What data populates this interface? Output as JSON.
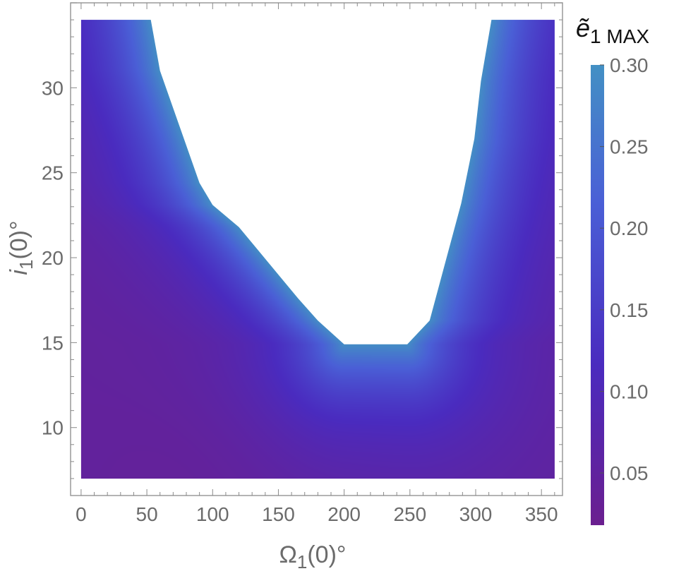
{
  "chart_data": {
    "type": "heatmap",
    "title": "",
    "xlabel": "Ω",
    "xlabel_sub": "1",
    "xlabel_suffix": "(0)°",
    "ylabel": "i",
    "ylabel_sub": "1",
    "ylabel_suffix": "(0)°",
    "colorbar_label": "ẽ",
    "colorbar_label_sub": "1 MAX",
    "xlim": [
      -8,
      366
    ],
    "ylim": [
      6,
      35
    ],
    "data_x_range": [
      0,
      360
    ],
    "data_y_range": [
      7,
      34
    ],
    "x_ticks": [
      0,
      50,
      100,
      150,
      200,
      250,
      300,
      350
    ],
    "y_ticks": [
      10,
      15,
      20,
      25,
      30
    ],
    "colorbar_range": [
      0.018,
      0.3
    ],
    "colorbar_ticks": [
      0.05,
      0.1,
      0.15,
      0.2,
      0.25,
      0.3
    ],
    "colorbar_tick_labels": [
      "0.05",
      "0.10",
      "0.15",
      "0.20",
      "0.25",
      "0.30"
    ],
    "colormap": [
      "#6b1f8f",
      "#4a2bbf",
      "#4a5fd6",
      "#4390c4"
    ],
    "frame_color": "#9a9a9a",
    "tick_color": "#6b6b6b",
    "grid": false,
    "boundary_left": [
      {
        "x": 53,
        "y": 34
      },
      {
        "x": 60,
        "y": 31
      },
      {
        "x": 90,
        "y": 24.4
      },
      {
        "x": 100,
        "y": 23.1
      },
      {
        "x": 120,
        "y": 21.8
      },
      {
        "x": 135,
        "y": 20.4
      },
      {
        "x": 150,
        "y": 19.0
      },
      {
        "x": 165,
        "y": 17.6
      },
      {
        "x": 180,
        "y": 16.3
      },
      {
        "x": 200,
        "y": 14.9
      }
    ],
    "boundary_right": [
      {
        "x": 312,
        "y": 34
      },
      {
        "x": 304,
        "y": 30.4
      },
      {
        "x": 299,
        "y": 27.0
      },
      {
        "x": 289,
        "y": 23.2
      },
      {
        "x": 265,
        "y": 16.3
      },
      {
        "x": 248,
        "y": 14.9
      }
    ]
  }
}
